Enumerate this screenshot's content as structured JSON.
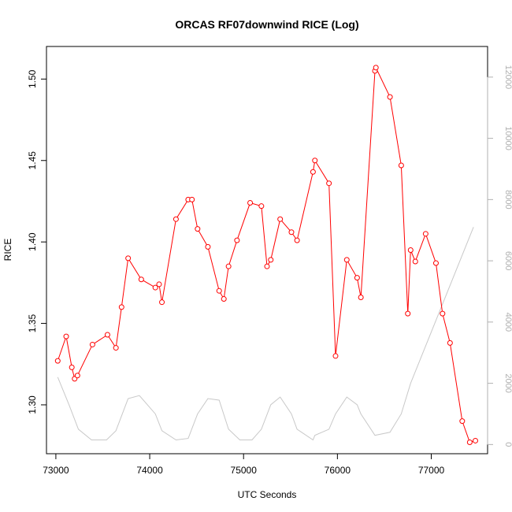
{
  "chart_data": {
    "type": "line",
    "title": "ORCAS RF07downwind RICE (Log)",
    "xlabel": "UTC Seconds",
    "ylabel": "RICE",
    "xlim": [
      72900,
      77600
    ],
    "ylim": [
      1.27,
      1.52
    ],
    "y2lim": [
      -300,
      13000
    ],
    "x_ticks": [
      73000,
      74000,
      75000,
      76000,
      77000
    ],
    "y_ticks": [
      1.3,
      1.35,
      1.4,
      1.45,
      1.5
    ],
    "y_tick_labels": [
      "1.30",
      "1.35",
      "1.40",
      "1.45",
      "1.50"
    ],
    "y2_ticks": [
      0,
      2000,
      4000,
      6000,
      8000,
      10000,
      12000
    ],
    "grid": false,
    "colors": {
      "rice": "#ff0000",
      "altitude": "#c8c8c8",
      "axis": "#000000",
      "right_axis": "#b0b0b0"
    },
    "series": [
      {
        "axis": "left",
        "style": "line+points",
        "x": [
          73020,
          73110,
          73170,
          73200,
          73230,
          73390,
          73550,
          73640,
          73700,
          73770,
          73910,
          74060,
          74100,
          74130,
          74280,
          74410,
          74450,
          74510,
          74620,
          74740,
          74790,
          74840,
          74930,
          75070,
          75190,
          75250,
          75290,
          75390,
          75510,
          75570,
          75740,
          75760,
          75910,
          75980,
          76100,
          76210,
          76250,
          76400,
          76410,
          76560,
          76680,
          76750,
          76780,
          76830,
          76940,
          77050,
          77120,
          77200,
          77330,
          77410,
          77470
        ],
        "y": [
          1.327,
          1.342,
          1.323,
          1.316,
          1.318,
          1.337,
          1.343,
          1.335,
          1.36,
          1.39,
          1.377,
          1.372,
          1.374,
          1.363,
          1.414,
          1.426,
          1.426,
          1.408,
          1.397,
          1.37,
          1.365,
          1.385,
          1.401,
          1.424,
          1.422,
          1.385,
          1.389,
          1.414,
          1.406,
          1.401,
          1.443,
          1.45,
          1.436,
          1.33,
          1.389,
          1.378,
          1.366,
          1.505,
          1.507,
          1.489,
          1.447,
          1.356,
          1.395,
          1.388,
          1.405,
          1.387,
          1.356,
          1.338,
          1.29,
          1.277,
          1.278
        ]
      },
      {
        "axis": "right",
        "style": "line",
        "x": [
          73020,
          73140,
          73240,
          73380,
          73540,
          73640,
          73770,
          73890,
          74060,
          74130,
          74280,
          74410,
          74510,
          74620,
          74740,
          74840,
          74960,
          75090,
          75190,
          75290,
          75390,
          75510,
          75570,
          75740,
          75760,
          75910,
          75980,
          76100,
          76210,
          76250,
          76400,
          76560,
          76680,
          76780,
          77450
        ],
        "y": [
          2200,
          1300,
          500,
          150,
          150,
          450,
          1500,
          1600,
          1000,
          450,
          150,
          200,
          1000,
          1500,
          1450,
          500,
          150,
          150,
          500,
          1300,
          1550,
          1000,
          500,
          150,
          300,
          500,
          1000,
          1550,
          1300,
          1000,
          300,
          400,
          1000,
          2000,
          7100
        ]
      }
    ]
  }
}
